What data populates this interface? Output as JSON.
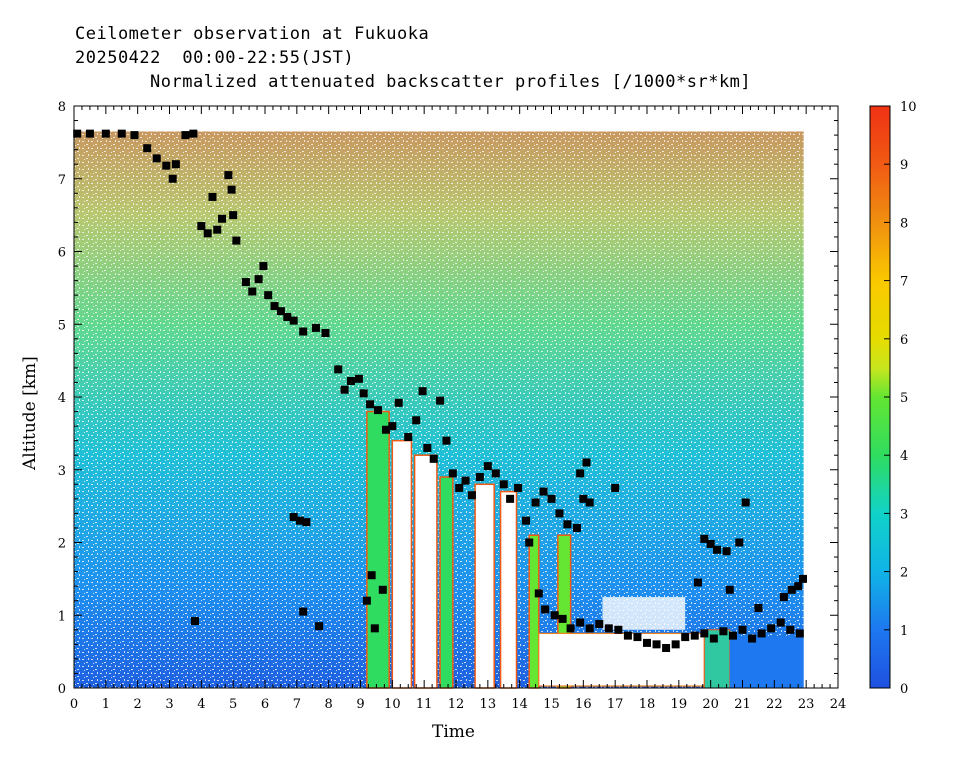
{
  "header": {
    "line1": "Ceilometer observation at Fukuoka",
    "line2": "20250422  00:00-22:55(JST)",
    "line3": "Normalized attenuated backscatter profiles [/1000*sr*km]"
  },
  "chart_data": {
    "type": "heatmap",
    "xlabel": "Time",
    "ylabel": "Altitude [km]",
    "xlim": [
      0,
      24
    ],
    "ylim": [
      0,
      8
    ],
    "x_ticks": [
      "0",
      "1",
      "2",
      "3",
      "4",
      "5",
      "6",
      "7",
      "8",
      "9",
      "10",
      "11",
      "12",
      "13",
      "14",
      "15",
      "16",
      "17",
      "18",
      "19",
      "20",
      "21",
      "22",
      "23",
      "24"
    ],
    "y_ticks": [
      "0",
      "1",
      "2",
      "3",
      "4",
      "5",
      "6",
      "7",
      "8"
    ],
    "colorbar": {
      "range": [
        0,
        10
      ],
      "ticks": [
        "0",
        "1",
        "2",
        "3",
        "4",
        "5",
        "6",
        "7",
        "8",
        "9",
        "10"
      ],
      "colors": [
        "#1e50e0",
        "#1e78f0",
        "#10b4e6",
        "#10d2c8",
        "#30dc60",
        "#64e632",
        "#dcdc00",
        "#fac800",
        "#f09010",
        "#f05a14",
        "#f03214"
      ]
    },
    "data_extent_hours": [
      0,
      22.92
    ],
    "data_top_km": 7.65,
    "cloud_base_points": [
      {
        "x": 0.1,
        "y": 7.62
      },
      {
        "x": 0.5,
        "y": 7.62
      },
      {
        "x": 1.0,
        "y": 7.62
      },
      {
        "x": 1.5,
        "y": 7.62
      },
      {
        "x": 1.9,
        "y": 7.6
      },
      {
        "x": 2.3,
        "y": 7.42
      },
      {
        "x": 2.6,
        "y": 7.28
      },
      {
        "x": 2.9,
        "y": 7.18
      },
      {
        "x": 3.2,
        "y": 7.2
      },
      {
        "x": 3.5,
        "y": 7.6
      },
      {
        "x": 3.75,
        "y": 7.62
      },
      {
        "x": 3.1,
        "y": 7.0
      },
      {
        "x": 4.0,
        "y": 6.35
      },
      {
        "x": 4.2,
        "y": 6.25
      },
      {
        "x": 4.35,
        "y": 6.75
      },
      {
        "x": 4.5,
        "y": 6.3
      },
      {
        "x": 4.65,
        "y": 6.45
      },
      {
        "x": 4.85,
        "y": 7.05
      },
      {
        "x": 4.95,
        "y": 6.85
      },
      {
        "x": 5.0,
        "y": 6.5
      },
      {
        "x": 5.1,
        "y": 6.15
      },
      {
        "x": 5.4,
        "y": 5.58
      },
      {
        "x": 5.6,
        "y": 5.45
      },
      {
        "x": 5.8,
        "y": 5.62
      },
      {
        "x": 5.95,
        "y": 5.8
      },
      {
        "x": 6.1,
        "y": 5.4
      },
      {
        "x": 6.3,
        "y": 5.25
      },
      {
        "x": 6.5,
        "y": 5.18
      },
      {
        "x": 6.7,
        "y": 5.1
      },
      {
        "x": 6.9,
        "y": 5.05
      },
      {
        "x": 7.2,
        "y": 4.9
      },
      {
        "x": 7.6,
        "y": 4.95
      },
      {
        "x": 7.9,
        "y": 4.88
      },
      {
        "x": 8.3,
        "y": 4.38
      },
      {
        "x": 8.5,
        "y": 4.1
      },
      {
        "x": 8.7,
        "y": 4.22
      },
      {
        "x": 8.95,
        "y": 4.25
      },
      {
        "x": 9.1,
        "y": 4.05
      },
      {
        "x": 9.3,
        "y": 3.9
      },
      {
        "x": 9.55,
        "y": 3.82
      },
      {
        "x": 9.8,
        "y": 3.55
      },
      {
        "x": 10.0,
        "y": 3.6
      },
      {
        "x": 10.2,
        "y": 3.92
      },
      {
        "x": 10.5,
        "y": 3.45
      },
      {
        "x": 10.75,
        "y": 3.68
      },
      {
        "x": 10.95,
        "y": 4.08
      },
      {
        "x": 11.1,
        "y": 3.3
      },
      {
        "x": 11.3,
        "y": 3.15
      },
      {
        "x": 11.5,
        "y": 3.95
      },
      {
        "x": 11.7,
        "y": 3.4
      },
      {
        "x": 11.9,
        "y": 2.95
      },
      {
        "x": 12.1,
        "y": 2.75
      },
      {
        "x": 12.3,
        "y": 2.85
      },
      {
        "x": 12.5,
        "y": 2.65
      },
      {
        "x": 12.75,
        "y": 2.9
      },
      {
        "x": 13.0,
        "y": 3.05
      },
      {
        "x": 13.25,
        "y": 2.95
      },
      {
        "x": 13.5,
        "y": 2.8
      },
      {
        "x": 13.7,
        "y": 2.6
      },
      {
        "x": 13.95,
        "y": 2.75
      },
      {
        "x": 14.2,
        "y": 2.3
      },
      {
        "x": 14.5,
        "y": 2.55
      },
      {
        "x": 14.75,
        "y": 2.7
      },
      {
        "x": 15.0,
        "y": 2.6
      },
      {
        "x": 15.25,
        "y": 2.4
      },
      {
        "x": 15.5,
        "y": 2.25
      },
      {
        "x": 15.8,
        "y": 2.2
      },
      {
        "x": 16.0,
        "y": 2.6
      },
      {
        "x": 16.2,
        "y": 2.55
      },
      {
        "x": 17.0,
        "y": 2.75
      },
      {
        "x": 14.3,
        "y": 2.0
      },
      {
        "x": 14.6,
        "y": 1.3
      },
      {
        "x": 14.8,
        "y": 1.08
      },
      {
        "x": 15.1,
        "y": 1.0
      },
      {
        "x": 15.35,
        "y": 0.95
      },
      {
        "x": 15.6,
        "y": 0.82
      },
      {
        "x": 15.9,
        "y": 0.9
      },
      {
        "x": 16.2,
        "y": 0.82
      },
      {
        "x": 16.5,
        "y": 0.88
      },
      {
        "x": 16.8,
        "y": 0.82
      },
      {
        "x": 17.1,
        "y": 0.8
      },
      {
        "x": 17.4,
        "y": 0.72
      },
      {
        "x": 17.7,
        "y": 0.7
      },
      {
        "x": 18.0,
        "y": 0.62
      },
      {
        "x": 18.3,
        "y": 0.6
      },
      {
        "x": 18.6,
        "y": 0.55
      },
      {
        "x": 18.9,
        "y": 0.6
      },
      {
        "x": 19.2,
        "y": 0.7
      },
      {
        "x": 19.5,
        "y": 0.72
      },
      {
        "x": 19.8,
        "y": 0.75
      },
      {
        "x": 20.1,
        "y": 0.68
      },
      {
        "x": 20.4,
        "y": 0.78
      },
      {
        "x": 20.7,
        "y": 0.72
      },
      {
        "x": 21.0,
        "y": 0.8
      },
      {
        "x": 21.3,
        "y": 0.68
      },
      {
        "x": 21.6,
        "y": 0.75
      },
      {
        "x": 21.9,
        "y": 0.82
      },
      {
        "x": 22.2,
        "y": 0.9
      },
      {
        "x": 22.5,
        "y": 0.8
      },
      {
        "x": 22.8,
        "y": 0.75
      },
      {
        "x": 22.3,
        "y": 1.25
      },
      {
        "x": 22.55,
        "y": 1.35
      },
      {
        "x": 22.75,
        "y": 1.4
      },
      {
        "x": 22.9,
        "y": 1.5
      },
      {
        "x": 19.8,
        "y": 2.05
      },
      {
        "x": 20.0,
        "y": 1.98
      },
      {
        "x": 20.2,
        "y": 1.9
      },
      {
        "x": 20.5,
        "y": 1.88
      },
      {
        "x": 20.9,
        "y": 2.0
      },
      {
        "x": 21.1,
        "y": 2.55
      },
      {
        "x": 21.5,
        "y": 1.1
      },
      {
        "x": 19.6,
        "y": 1.45
      },
      {
        "x": 20.6,
        "y": 1.35
      },
      {
        "x": 3.8,
        "y": 0.92
      },
      {
        "x": 7.2,
        "y": 1.05
      },
      {
        "x": 7.7,
        "y": 0.85
      },
      {
        "x": 9.2,
        "y": 1.2
      },
      {
        "x": 9.35,
        "y": 1.55
      },
      {
        "x": 9.7,
        "y": 1.35
      },
      {
        "x": 9.45,
        "y": 0.82
      },
      {
        "x": 6.9,
        "y": 2.35
      },
      {
        "x": 7.1,
        "y": 2.3
      },
      {
        "x": 7.3,
        "y": 2.28
      },
      {
        "x": 16.1,
        "y": 3.1
      },
      {
        "x": 15.9,
        "y": 2.95
      }
    ]
  }
}
